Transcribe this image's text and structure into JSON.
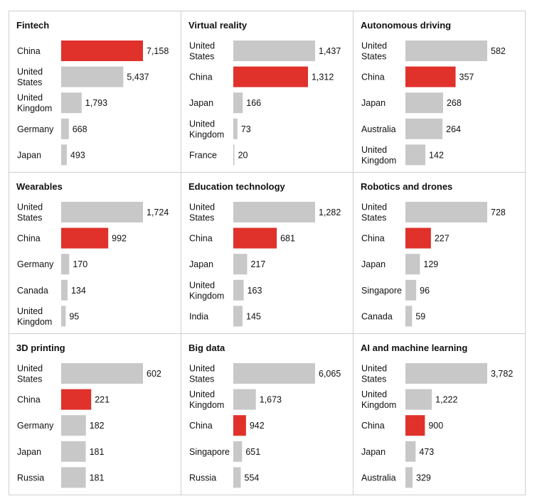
{
  "chart_data": [
    {
      "type": "bar",
      "title": "Fintech",
      "categories": [
        "China",
        "United States",
        "United Kingdom",
        "Germany",
        "Japan"
      ],
      "category_lines": [
        [
          "China"
        ],
        [
          "United",
          "States"
        ],
        [
          "United",
          "Kingdom"
        ],
        [
          "Germany"
        ],
        [
          "Japan"
        ]
      ],
      "values": [
        7158,
        5437,
        1793,
        668,
        493
      ],
      "value_labels": [
        "7,158",
        "5,437",
        "1,793",
        "668",
        "493"
      ],
      "highlight": "China"
    },
    {
      "type": "bar",
      "title": "Virtual reality",
      "categories": [
        "United States",
        "China",
        "Japan",
        "United Kingdom",
        "France"
      ],
      "category_lines": [
        [
          "United",
          "States"
        ],
        [
          "China"
        ],
        [
          "Japan"
        ],
        [
          "United",
          "Kingdom"
        ],
        [
          "France"
        ]
      ],
      "values": [
        1437,
        1312,
        166,
        73,
        20
      ],
      "value_labels": [
        "1,437",
        "1,312",
        "166",
        "73",
        "20"
      ],
      "highlight": "China"
    },
    {
      "type": "bar",
      "title": "Autonomous driving",
      "categories": [
        "United States",
        "China",
        "Japan",
        "Australia",
        "United Kingdom"
      ],
      "category_lines": [
        [
          "United",
          "States"
        ],
        [
          "China"
        ],
        [
          "Japan"
        ],
        [
          "Australia"
        ],
        [
          "United",
          "Kingdom"
        ]
      ],
      "values": [
        582,
        357,
        268,
        264,
        142
      ],
      "value_labels": [
        "582",
        "357",
        "268",
        "264",
        "142"
      ],
      "highlight": "China"
    },
    {
      "type": "bar",
      "title": "Wearables",
      "categories": [
        "United States",
        "China",
        "Germany",
        "Canada",
        "United Kingdom"
      ],
      "category_lines": [
        [
          "United",
          "States"
        ],
        [
          "China"
        ],
        [
          "Germany"
        ],
        [
          "Canada"
        ],
        [
          "United",
          "Kingdom"
        ]
      ],
      "values": [
        1724,
        992,
        170,
        134,
        95
      ],
      "value_labels": [
        "1,724",
        "992",
        "170",
        "134",
        "95"
      ],
      "highlight": "China"
    },
    {
      "type": "bar",
      "title": "Education technology",
      "categories": [
        "United States",
        "China",
        "Japan",
        "United Kingdom",
        "India"
      ],
      "category_lines": [
        [
          "United",
          "States"
        ],
        [
          "China"
        ],
        [
          "Japan"
        ],
        [
          "United",
          "Kingdom"
        ],
        [
          "India"
        ]
      ],
      "values": [
        1282,
        681,
        217,
        163,
        145
      ],
      "value_labels": [
        "1,282",
        "681",
        "217",
        "163",
        "145"
      ],
      "highlight": "China"
    },
    {
      "type": "bar",
      "title": "Robotics and drones",
      "categories": [
        "United States",
        "China",
        "Japan",
        "Singapore",
        "Canada"
      ],
      "category_lines": [
        [
          "United",
          "States"
        ],
        [
          "China"
        ],
        [
          "Japan"
        ],
        [
          "Singapore"
        ],
        [
          "Canada"
        ]
      ],
      "values": [
        728,
        227,
        129,
        96,
        59
      ],
      "value_labels": [
        "728",
        "227",
        "129",
        "96",
        "59"
      ],
      "highlight": "China"
    },
    {
      "type": "bar",
      "title": "3D printing",
      "categories": [
        "United States",
        "China",
        "Germany",
        "Japan",
        "Russia"
      ],
      "category_lines": [
        [
          "United",
          "States"
        ],
        [
          "China"
        ],
        [
          "Germany"
        ],
        [
          "Japan"
        ],
        [
          "Russia"
        ]
      ],
      "values": [
        602,
        221,
        182,
        181,
        181
      ],
      "value_labels": [
        "602",
        "221",
        "182",
        "181",
        "181"
      ],
      "highlight": "China"
    },
    {
      "type": "bar",
      "title": "Big data",
      "categories": [
        "United States",
        "United Kingdom",
        "China",
        "Singapore",
        "Russia"
      ],
      "category_lines": [
        [
          "United",
          "States"
        ],
        [
          "United",
          "Kingdom"
        ],
        [
          "China"
        ],
        [
          "Singapore"
        ],
        [
          "Russia"
        ]
      ],
      "values": [
        6065,
        1673,
        942,
        651,
        554
      ],
      "value_labels": [
        "6,065",
        "1,673",
        "942",
        "651",
        "554"
      ],
      "highlight": "China"
    },
    {
      "type": "bar",
      "title": "AI and machine learning",
      "categories": [
        "United States",
        "United Kingdom",
        "China",
        "Japan",
        "Australia"
      ],
      "category_lines": [
        [
          "United",
          "States"
        ],
        [
          "United",
          "Kingdom"
        ],
        [
          "China"
        ],
        [
          "Japan"
        ],
        [
          "Australia"
        ]
      ],
      "values": [
        3782,
        1222,
        900,
        473,
        329
      ],
      "value_labels": [
        "3,782",
        "1,222",
        "900",
        "473",
        "329"
      ],
      "highlight": "China"
    }
  ],
  "colors": {
    "bar": "#c8c8c8",
    "highlight": "#e0312b",
    "border": "#cfcfcf"
  }
}
